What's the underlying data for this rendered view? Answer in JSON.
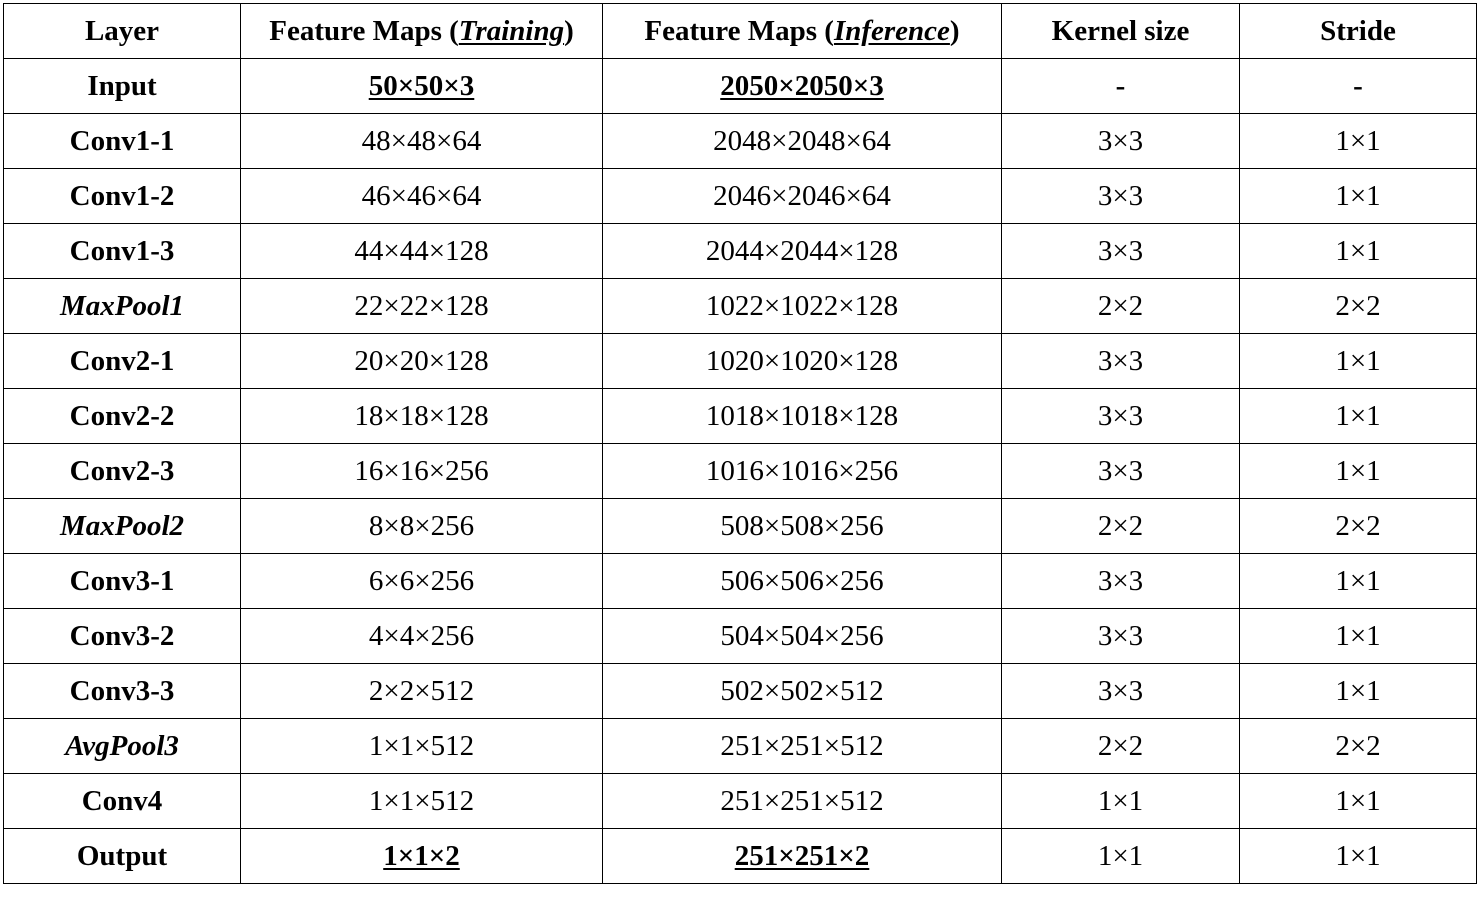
{
  "headers": {
    "layer": "Layer",
    "training_prefix": "Feature Maps (",
    "training_word": "Training",
    "training_suffix": ")",
    "inference_prefix": "Feature Maps (",
    "inference_word": "Inference",
    "inference_suffix": ")",
    "kernel": "Kernel size",
    "stride": "Stride"
  },
  "rows": [
    {
      "layer": "Input",
      "training": "50×50×3",
      "inference": "2050×2050×3",
      "kernel": "-",
      "stride": "-"
    },
    {
      "layer": "Conv1-1",
      "training": "48×48×64",
      "inference": "2048×2048×64",
      "kernel": "3×3",
      "stride": "1×1"
    },
    {
      "layer": "Conv1-2",
      "training": "46×46×64",
      "inference": "2046×2046×64",
      "kernel": "3×3",
      "stride": "1×1"
    },
    {
      "layer": "Conv1-3",
      "training": "44×44×128",
      "inference": "2044×2044×128",
      "kernel": "3×3",
      "stride": "1×1"
    },
    {
      "layer": "MaxPool1",
      "training": "22×22×128",
      "inference": "1022×1022×128",
      "kernel": "2×2",
      "stride": "2×2"
    },
    {
      "layer": "Conv2-1",
      "training": "20×20×128",
      "inference": "1020×1020×128",
      "kernel": "3×3",
      "stride": "1×1"
    },
    {
      "layer": "Conv2-2",
      "training": "18×18×128",
      "inference": "1018×1018×128",
      "kernel": "3×3",
      "stride": "1×1"
    },
    {
      "layer": "Conv2-3",
      "training": "16×16×256",
      "inference": "1016×1016×256",
      "kernel": "3×3",
      "stride": "1×1"
    },
    {
      "layer": "MaxPool2",
      "training": "8×8×256",
      "inference": "508×508×256",
      "kernel": "2×2",
      "stride": "2×2"
    },
    {
      "layer": "Conv3-1",
      "training": "6×6×256",
      "inference": "506×506×256",
      "kernel": "3×3",
      "stride": "1×1"
    },
    {
      "layer": "Conv3-2",
      "training": "4×4×256",
      "inference": "504×504×256",
      "kernel": "3×3",
      "stride": "1×1"
    },
    {
      "layer": "Conv3-3",
      "training": "2×2×512",
      "inference": "502×502×512",
      "kernel": "3×3",
      "stride": "1×1"
    },
    {
      "layer": "AvgPool3",
      "training": "1×1×512",
      "inference": "251×251×512",
      "kernel": "2×2",
      "stride": "2×2"
    },
    {
      "layer": "Conv4",
      "training": "1×1×512",
      "inference": "251×251×512",
      "kernel": "1×1",
      "stride": "1×1"
    },
    {
      "layer": "Output",
      "training": "1×1×2",
      "inference": "251×251×2",
      "kernel": "1×1",
      "stride": "1×1"
    }
  ]
}
